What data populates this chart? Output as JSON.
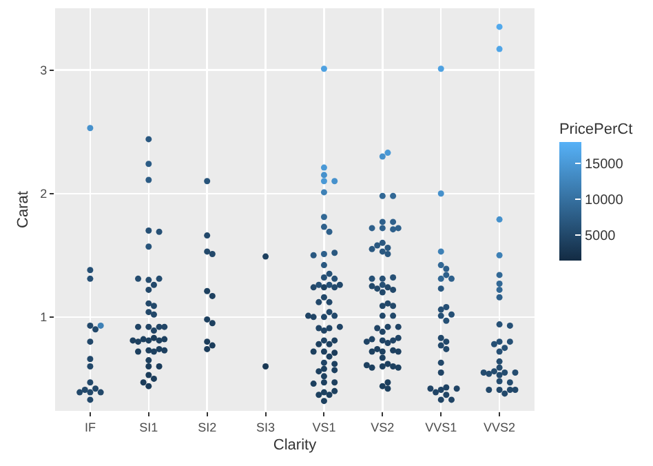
{
  "chart_data": {
    "type": "scatter",
    "xlabel": "Clarity",
    "ylabel": "Carat",
    "clabel": "PricePerCt",
    "categories": [
      "IF",
      "SI1",
      "SI2",
      "SI3",
      "VS1",
      "VS2",
      "VVS1",
      "VVS2"
    ],
    "ylim": [
      0.24,
      3.5
    ],
    "yticks": [
      1,
      2,
      3
    ],
    "clim": [
      1400,
      18000
    ],
    "cticks": [
      5000,
      10000,
      15000
    ],
    "grid": true,
    "marker": "circle",
    "series": [
      {
        "x": [
          "IF",
          "IF",
          "IF",
          "IF",
          "IF",
          "IF",
          "IF",
          "IF",
          "IF",
          "IF",
          "IF",
          "IF",
          "IF",
          "IF",
          "IF",
          "IF",
          "SI1",
          "SI1",
          "SI1",
          "SI1",
          "SI1",
          "SI1",
          "SI1",
          "SI1",
          "SI1",
          "SI1",
          "SI1",
          "SI1",
          "SI1",
          "SI1",
          "SI1",
          "SI1",
          "SI1",
          "SI1",
          "SI1",
          "SI1",
          "SI1",
          "SI1",
          "SI1",
          "SI1",
          "SI1",
          "SI1",
          "SI1",
          "SI1",
          "SI1",
          "SI1",
          "SI1",
          "SI1",
          "SI1",
          "SI1",
          "SI1",
          "SI1",
          "SI1",
          "SI1",
          "SI1",
          "SI2",
          "SI2",
          "SI2",
          "SI2",
          "SI2",
          "SI2",
          "SI2",
          "SI2",
          "SI2",
          "SI2",
          "SI2",
          "SI3",
          "SI3",
          "VS1",
          "VS1",
          "VS1",
          "VS1",
          "VS1",
          "VS1",
          "VS1",
          "VS1",
          "VS1",
          "VS1",
          "VS1",
          "VS1",
          "VS1",
          "VS1",
          "VS1",
          "VS1",
          "VS1",
          "VS1",
          "VS1",
          "VS1",
          "VS1",
          "VS1",
          "VS1",
          "VS1",
          "VS1",
          "VS1",
          "VS1",
          "VS1",
          "VS1",
          "VS1",
          "VS1",
          "VS1",
          "VS1",
          "VS1",
          "VS1",
          "VS1",
          "VS1",
          "VS1",
          "VS1",
          "VS1",
          "VS1",
          "VS1",
          "VS1",
          "VS1",
          "VS1",
          "VS1",
          "VS1",
          "VS1",
          "VS1",
          "VS1",
          "VS1",
          "VS1",
          "VS1",
          "VS1",
          "VS1",
          "VS1",
          "VS2",
          "VS2",
          "VS2",
          "VS2",
          "VS2",
          "VS2",
          "VS2",
          "VS2",
          "VS2",
          "VS2",
          "VS2",
          "VS2",
          "VS2",
          "VS2",
          "VS2",
          "VS2",
          "VS2",
          "VS2",
          "VS2",
          "VS2",
          "VS2",
          "VS2",
          "VS2",
          "VS2",
          "VS2",
          "VS2",
          "VS2",
          "VS2",
          "VS2",
          "VS2",
          "VS2",
          "VS2",
          "VS2",
          "VS2",
          "VS2",
          "VS2",
          "VS2",
          "VS2",
          "VS2",
          "VS2",
          "VS2",
          "VS2",
          "VS2",
          "VS2",
          "VS2",
          "VS2",
          "VS2",
          "VS2",
          "VS2",
          "VS2",
          "VS2",
          "VS2",
          "VS2",
          "VS2",
          "VS2",
          "VVS1",
          "VVS1",
          "VVS1",
          "VVS1",
          "VVS1",
          "VVS1",
          "VVS1",
          "VVS1",
          "VVS1",
          "VVS1",
          "VVS1",
          "VVS1",
          "VVS1",
          "VVS1",
          "VVS1",
          "VVS1",
          "VVS1",
          "VVS1",
          "VVS1",
          "VVS1",
          "VVS1",
          "VVS1",
          "VVS1",
          "VVS1",
          "VVS1",
          "VVS1",
          "VVS1",
          "VVS1",
          "VVS2",
          "VVS2",
          "VVS2",
          "VVS2",
          "VVS2",
          "VVS2",
          "VVS2",
          "VVS2",
          "VVS2",
          "VVS2",
          "VVS2",
          "VVS2",
          "VVS2",
          "VVS2",
          "VVS2",
          "VVS2",
          "VVS2",
          "VVS2",
          "VVS2",
          "VVS2",
          "VVS2",
          "VVS2",
          "VVS2",
          "VVS2",
          "VVS2",
          "VVS2",
          "VVS2",
          "VVS2",
          "VVS2",
          "VVS2"
        ],
        "values": [
          2.53,
          1.31,
          1.38,
          0.93,
          0.8,
          0.9,
          0.93,
          0.66,
          0.6,
          0.39,
          0.42,
          0.39,
          0.41,
          0.47,
          0.39,
          0.33,
          2.44,
          2.24,
          2.11,
          1.7,
          1.69,
          1.57,
          1.3,
          1.31,
          1.26,
          1.22,
          1.31,
          1.11,
          1.04,
          1.09,
          1.02,
          0.92,
          0.92,
          0.92,
          0.92,
          0.89,
          0.81,
          0.81,
          0.8,
          0.83,
          0.81,
          0.82,
          0.82,
          0.73,
          0.74,
          0.72,
          0.73,
          0.72,
          0.65,
          0.6,
          0.6,
          0.53,
          0.5,
          0.44,
          0.47,
          2.1,
          1.66,
          1.53,
          1.51,
          0.98,
          0.95,
          1.21,
          1.17,
          0.8,
          0.77,
          0.74,
          1.49,
          0.6,
          2.1,
          2.01,
          1.81,
          1.73,
          1.51,
          1.42,
          1.32,
          1.24,
          1.26,
          1.26,
          1.16,
          1.12,
          1.0,
          0.89,
          1.01,
          0.81,
          0.78,
          0.72,
          0.71,
          0.63,
          0.58,
          0.47,
          0.47,
          0.39,
          0.37,
          0.32,
          3.01,
          2.1,
          2.21,
          2.15,
          1.69,
          1.52,
          1.5,
          1.35,
          1.31,
          1.24,
          1.24,
          1.26,
          1.12,
          1.04,
          1.0,
          1.01,
          0.91,
          0.91,
          0.92,
          0.81,
          0.78,
          0.72,
          0.68,
          0.62,
          0.57,
          0.56,
          0.52,
          0.46,
          0.4,
          0.37,
          2.3,
          2.33,
          1.98,
          1.98,
          1.77,
          1.77,
          1.72,
          1.71,
          1.72,
          1.72,
          1.6,
          1.56,
          1.58,
          1.55,
          1.53,
          1.51,
          1.31,
          1.32,
          1.31,
          1.26,
          1.24,
          1.23,
          1.2,
          1.22,
          1.25,
          1.09,
          1.09,
          1.11,
          1.01,
          1.01,
          0.88,
          0.92,
          0.91,
          0.92,
          0.81,
          0.81,
          0.79,
          0.82,
          0.83,
          0.8,
          0.72,
          0.73,
          0.72,
          0.74,
          0.72,
          0.67,
          0.6,
          0.6,
          0.59,
          0.59,
          0.61,
          0.62,
          0.44,
          0.42,
          0.47,
          3.01,
          2.0,
          1.53,
          1.42,
          1.31,
          1.39,
          1.34,
          1.31,
          1.23,
          1.06,
          1.01,
          1.02,
          1.08,
          0.97,
          0.83,
          0.8,
          0.77,
          0.74,
          0.63,
          0.55,
          0.41,
          0.43,
          0.42,
          0.33,
          0.33,
          0.39,
          0.37,
          0.42,
          3.35,
          3.17,
          1.79,
          1.5,
          1.34,
          1.27,
          1.22,
          1.16,
          0.94,
          0.93,
          0.8,
          0.8,
          0.72,
          0.75,
          0.78,
          0.64,
          0.59,
          0.55,
          0.56,
          0.55,
          0.55,
          0.48,
          0.47,
          0.53,
          0.54,
          0.41,
          0.41,
          0.41,
          0.38,
          0.41
        ],
        "cvalues": [
          14000,
          6000,
          6000,
          5000,
          5000,
          5000,
          12000,
          5000,
          5000,
          5000,
          5000,
          5000,
          5000,
          5000,
          5000,
          5000,
          7000,
          7500,
          7500,
          6000,
          6000,
          6500,
          5500,
          5500,
          5000,
          5000,
          5500,
          5000,
          5000,
          5000,
          5000,
          4500,
          4500,
          4500,
          4500,
          4500,
          4000,
          4000,
          4000,
          3500,
          4000,
          4000,
          4000,
          4000,
          4000,
          4000,
          4000,
          4000,
          4000,
          3500,
          3500,
          3500,
          3500,
          3500,
          3500,
          6500,
          5000,
          5000,
          5000,
          4000,
          4000,
          4000,
          4000,
          3500,
          3500,
          3500,
          4000,
          3000,
          15000,
          12000,
          9000,
          8000,
          8000,
          7000,
          6000,
          4000,
          6000,
          6000,
          5000,
          5000,
          5000,
          4500,
          5000,
          4500,
          4000,
          4000,
          3500,
          4500,
          4000,
          4000,
          4000,
          4000,
          4000,
          4000,
          16000,
          14000,
          15000,
          14000,
          8000,
          7000,
          7000,
          6000,
          6000,
          5000,
          5000,
          5000,
          5000,
          5000,
          4500,
          4500,
          4500,
          4500,
          4500,
          4000,
          4000,
          4000,
          4000,
          4000,
          4000,
          4000,
          4000,
          4000,
          4000,
          4000,
          14000,
          15000,
          9000,
          9000,
          8000,
          8000,
          8000,
          8000,
          8000,
          8000,
          7000,
          7000,
          7000,
          7000,
          7000,
          7000,
          6000,
          6000,
          6000,
          6000,
          5000,
          5000,
          5000,
          5000,
          5000,
          5000,
          5000,
          5000,
          5000,
          5000,
          4500,
          4500,
          4500,
          4500,
          4500,
          4500,
          4500,
          4500,
          4500,
          4500,
          4000,
          4000,
          4000,
          4000,
          4000,
          4000,
          4000,
          4000,
          4000,
          4000,
          4000,
          4000,
          4000,
          4000,
          4000,
          16000,
          14000,
          12000,
          9000,
          9000,
          8000,
          8000,
          8000,
          7000,
          6000,
          6000,
          6000,
          6000,
          6000,
          5000,
          5000,
          5000,
          5000,
          5000,
          4500,
          4500,
          4500,
          4500,
          4500,
          4500,
          4500,
          4500,
          4500,
          17000,
          16500,
          14000,
          12000,
          9000,
          9000,
          9000,
          8000,
          6000,
          6000,
          6000,
          6000,
          6000,
          6000,
          6000,
          5500,
          5500,
          5500,
          5500,
          5500,
          5500,
          5500,
          5500,
          5500,
          5500,
          5000,
          5000,
          5000,
          5000,
          5000
        ]
      }
    ]
  }
}
